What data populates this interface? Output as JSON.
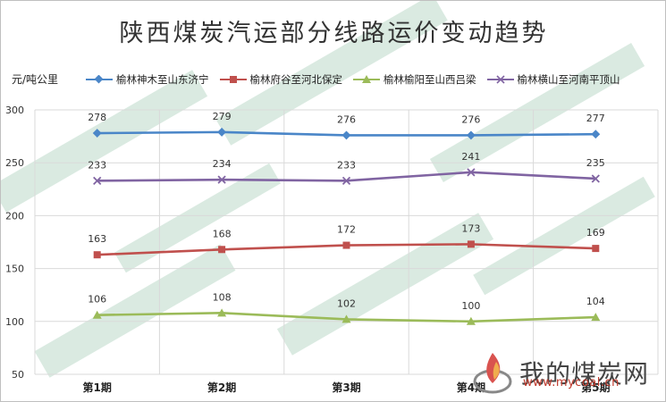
{
  "title": "陕西煤炭汽运部分线路运价变动趋势",
  "unit_label": "元/吨公里",
  "watermark": {
    "text": "我的煤炭网",
    "url": "www.mycoal.cn"
  },
  "colors": {
    "series_1": "#4a86c8",
    "series_2": "#c0504d",
    "series_3": "#9bbb59",
    "series_4": "#8064a2",
    "grid": "#d9d9d9"
  },
  "chart_data": {
    "type": "line",
    "title": "陕西煤炭汽运部分线路运价变动趋势",
    "ylabel": "元/吨公里",
    "xlabel": "",
    "categories": [
      "第1期",
      "第2期",
      "第3期",
      "第4期",
      "第5期"
    ],
    "ylim": [
      50,
      300
    ],
    "yticks": [
      50,
      100,
      150,
      200,
      250,
      300
    ],
    "grid": true,
    "legend_position": "top",
    "series": [
      {
        "name": "榆林神木至山东济宁",
        "marker": "diamond",
        "values": [
          278,
          279,
          276,
          276,
          277
        ]
      },
      {
        "name": "榆林府谷至河北保定",
        "marker": "square",
        "values": [
          163,
          168,
          172,
          173,
          169
        ]
      },
      {
        "name": "榆林榆阳至山西吕梁",
        "marker": "triangle",
        "values": [
          106,
          108,
          102,
          100,
          104
        ]
      },
      {
        "name": "榆林横山至河南平顶山",
        "marker": "x",
        "values": [
          233,
          234,
          233,
          241,
          235
        ]
      }
    ]
  }
}
